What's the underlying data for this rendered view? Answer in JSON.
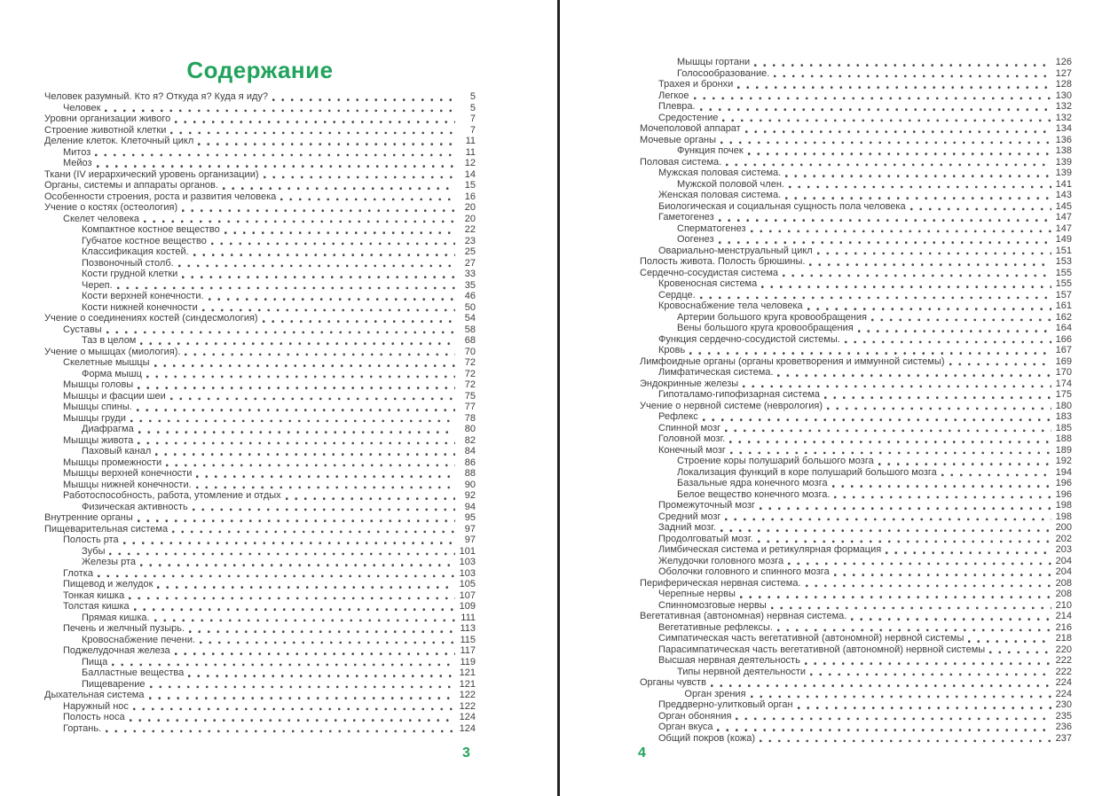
{
  "title": "Содержание",
  "accent_color": "#21a35c",
  "text_color": "#3d3d3d",
  "pages": [
    {
      "number": "3",
      "entries": [
        {
          "label": "Человек разумный. Кто я? Откуда я? Куда я иду?",
          "page": "5",
          "indent": 0
        },
        {
          "label": "Человек",
          "page": "5",
          "indent": 1
        },
        {
          "label": "Уровни организации живого",
          "page": "7",
          "indent": 0
        },
        {
          "label": "Строение животной клетки",
          "page": "7",
          "indent": 0
        },
        {
          "label": "Деление клеток. Клеточный цикл",
          "page": "11",
          "indent": 0
        },
        {
          "label": "Митоз",
          "page": "11",
          "indent": 1
        },
        {
          "label": "Мейоз",
          "page": "12",
          "indent": 1
        },
        {
          "label": "Ткани (IV иерархический уровень организации)",
          "page": "14",
          "indent": 0
        },
        {
          "label": "Органы, системы и аппараты органов.",
          "page": "15",
          "indent": 0
        },
        {
          "label": "Особенности строения, роста и развития человека",
          "page": "16",
          "indent": 0
        },
        {
          "label": "Учение о костях (остеология)",
          "page": "20",
          "indent": 0
        },
        {
          "label": "Скелет человека",
          "page": "20",
          "indent": 1
        },
        {
          "label": "Компактное костное вещество",
          "page": "22",
          "indent": 2
        },
        {
          "label": "Губчатое костное вещество",
          "page": "23",
          "indent": 2
        },
        {
          "label": "Классификация костей.",
          "page": "25",
          "indent": 2
        },
        {
          "label": "Позвоночный столб.",
          "page": "27",
          "indent": 2
        },
        {
          "label": "Кости грудной клетки",
          "page": "33",
          "indent": 2
        },
        {
          "label": "Череп.",
          "page": "35",
          "indent": 2
        },
        {
          "label": "Кости верхней конечности.",
          "page": "46",
          "indent": 2
        },
        {
          "label": "Кости нижней конечности",
          "page": "50",
          "indent": 2
        },
        {
          "label": "Учение о соединениях костей (синдесмология)",
          "page": "54",
          "indent": 0
        },
        {
          "label": "Суставы",
          "page": "58",
          "indent": 1
        },
        {
          "label": "Таз в целом",
          "page": "68",
          "indent": 2
        },
        {
          "label": "Учение о мышцах (миология).",
          "page": "70",
          "indent": 0
        },
        {
          "label": "Скелетные мышцы",
          "page": "72",
          "indent": 1
        },
        {
          "label": "Форма мышц",
          "page": "72",
          "indent": 2
        },
        {
          "label": "Мышцы головы",
          "page": "72",
          "indent": 1
        },
        {
          "label": "Мышцы и фасции шеи",
          "page": "75",
          "indent": 1
        },
        {
          "label": "Мышцы спины.",
          "page": "77",
          "indent": 1
        },
        {
          "label": "Мышцы груди",
          "page": "78",
          "indent": 1
        },
        {
          "label": "Диафрагма",
          "page": "80",
          "indent": 2
        },
        {
          "label": "Мышцы живота",
          "page": "82",
          "indent": 1
        },
        {
          "label": "Паховый канал",
          "page": "84",
          "indent": 2
        },
        {
          "label": "Мышцы промежности",
          "page": "86",
          "indent": 1
        },
        {
          "label": "Мышцы верхней конечности",
          "page": "88",
          "indent": 1
        },
        {
          "label": "Мышцы нижней конечности.",
          "page": "90",
          "indent": 1
        },
        {
          "label": "Работоспособность, работа, утомление и отдых",
          "page": "92",
          "indent": 1
        },
        {
          "label": "Физическая активность",
          "page": "94",
          "indent": 2
        },
        {
          "label": "Внутренние органы",
          "page": "95",
          "indent": 0
        },
        {
          "label": "Пищеварительная система",
          "page": "97",
          "indent": 0
        },
        {
          "label": "Полость рта",
          "page": "97",
          "indent": 1
        },
        {
          "label": "Зубы",
          "page": "101",
          "indent": 2
        },
        {
          "label": "Железы рта",
          "page": "103",
          "indent": 2
        },
        {
          "label": "Глотка",
          "page": "103",
          "indent": 1
        },
        {
          "label": "Пищевод и желудок",
          "page": "105",
          "indent": 1
        },
        {
          "label": "Тонкая кишка",
          "page": "107",
          "indent": 1
        },
        {
          "label": "Толстая кишка",
          "page": "109",
          "indent": 1
        },
        {
          "label": "Прямая кишка.",
          "page": "111",
          "indent": 2
        },
        {
          "label": "Печень и желчный пузырь.",
          "page": "113",
          "indent": 1
        },
        {
          "label": "Кровоснабжение печени.",
          "page": "115",
          "indent": 2
        },
        {
          "label": "Поджелудочная железа",
          "page": "117",
          "indent": 1
        },
        {
          "label": "Пища",
          "page": "119",
          "indent": 2
        },
        {
          "label": "Балластные вещества",
          "page": "121",
          "indent": 2
        },
        {
          "label": "Пищеварение",
          "page": "121",
          "indent": 2
        },
        {
          "label": "Дыхательная система",
          "page": "122",
          "indent": 0
        },
        {
          "label": "Наружный нос",
          "page": "122",
          "indent": 1
        },
        {
          "label": "Полость носа",
          "page": "124",
          "indent": 1
        },
        {
          "label": "Гортань.",
          "page": "124",
          "indent": 1
        }
      ]
    },
    {
      "number": "4",
      "entries": [
        {
          "label": "Мышцы гортани",
          "page": "126",
          "indent": 2
        },
        {
          "label": "Голосообразование.",
          "page": "127",
          "indent": 2
        },
        {
          "label": "Трахея и бронхи",
          "page": "128",
          "indent": 1
        },
        {
          "label": "Легкое",
          "page": "130",
          "indent": 1
        },
        {
          "label": "Плевра.",
          "page": "132",
          "indent": 1
        },
        {
          "label": "Средостение",
          "page": "132",
          "indent": 1
        },
        {
          "label": "Мочеполовой аппарат",
          "page": "134",
          "indent": 0
        },
        {
          "label": "Мочевые органы",
          "page": "136",
          "indent": 0
        },
        {
          "label": "Функция почек",
          "page": "138",
          "indent": 2
        },
        {
          "label": "Половая система.",
          "page": "139",
          "indent": 0
        },
        {
          "label": "Мужская половая система.",
          "page": "139",
          "indent": 1
        },
        {
          "label": "Мужской половой член.",
          "page": "141",
          "indent": 2
        },
        {
          "label": "Женская половая система.",
          "page": "143",
          "indent": 1
        },
        {
          "label": "Биологическая и социальная сущность пола человека",
          "page": "145",
          "indent": 1
        },
        {
          "label": "Гаметогенез",
          "page": "147",
          "indent": 1
        },
        {
          "label": "Сперматогенез",
          "page": "147",
          "indent": 2
        },
        {
          "label": "Оогенез",
          "page": "149",
          "indent": 2
        },
        {
          "label": "Овариально-менструальный цикл",
          "page": "151",
          "indent": 1
        },
        {
          "label": "Полость живота. Полость брюшины.",
          "page": "153",
          "indent": 0
        },
        {
          "label": "Сердечно-сосудистая система",
          "page": "155",
          "indent": 0
        },
        {
          "label": "Кровеносная система",
          "page": "155",
          "indent": 1
        },
        {
          "label": "Сердце.",
          "page": "157",
          "indent": 1
        },
        {
          "label": "Кровоснабжение тела человека",
          "page": "161",
          "indent": 1
        },
        {
          "label": "Артерии большого круга кровообращения",
          "page": "162",
          "indent": 2
        },
        {
          "label": "Вены большого круга кровообращения",
          "page": "164",
          "indent": 2
        },
        {
          "label": "Функция сердечно-сосудистой системы.",
          "page": "166",
          "indent": 1
        },
        {
          "label": "Кровь",
          "page": "167",
          "indent": 1
        },
        {
          "label": "Лимфоидные органы (органы кроветворения и иммунной системы)",
          "page": "169",
          "indent": 0
        },
        {
          "label": "Лимфатическая система.",
          "page": "170",
          "indent": 1
        },
        {
          "label": "Эндокринные железы",
          "page": "174",
          "indent": 0
        },
        {
          "label": "Гипоталамо-гипофизарная система",
          "page": "175",
          "indent": 1
        },
        {
          "label": "Учение о нервной системе (неврология)",
          "page": "180",
          "indent": 0
        },
        {
          "label": "Рефлекс",
          "page": "183",
          "indent": 1
        },
        {
          "label": "Спинной мозг",
          "page": "185",
          "indent": 1
        },
        {
          "label": "Головной мозг.",
          "page": "188",
          "indent": 1
        },
        {
          "label": "Конечный мозг",
          "page": "189",
          "indent": 1
        },
        {
          "label": "Строение коры полушарий большого мозга",
          "page": "192",
          "indent": 2
        },
        {
          "label": "Локализация функций в коре полушарий большого мозга",
          "page": "194",
          "indent": 2
        },
        {
          "label": "Базальные ядра конечного мозга",
          "page": "196",
          "indent": 2
        },
        {
          "label": "Белое вещество конечного мозга.",
          "page": "196",
          "indent": 2
        },
        {
          "label": "Промежуточный мозг",
          "page": "198",
          "indent": 1
        },
        {
          "label": "Средний мозг",
          "page": "198",
          "indent": 1
        },
        {
          "label": "Задний мозг.",
          "page": "200",
          "indent": 1
        },
        {
          "label": "Продолговатый мозг.",
          "page": "202",
          "indent": 1
        },
        {
          "label": "Лимбическая система и ретикулярная формация",
          "page": "203",
          "indent": 1
        },
        {
          "label": "Желудочки головного мозга",
          "page": "204",
          "indent": 1
        },
        {
          "label": "Оболочки головного и спинного мозга",
          "page": "204",
          "indent": 1
        },
        {
          "label": "Периферическая нервная система.",
          "page": "208",
          "indent": 0
        },
        {
          "label": "Черепные нервы",
          "page": "208",
          "indent": 1
        },
        {
          "label": "Спинномозговые нервы",
          "page": "210",
          "indent": 1
        },
        {
          "label": "Вегетативная (автономная) нервная система.",
          "page": "214",
          "indent": 0
        },
        {
          "label": "Вегетативные рефлексы.",
          "page": "216",
          "indent": 1
        },
        {
          "label": "Симпатическая часть вегетативной (автономной) нервной системы",
          "page": "218",
          "indent": 1
        },
        {
          "label": "Парасимпатическая часть вегетативной (автономной) нервной системы",
          "page": "220",
          "indent": 1
        },
        {
          "label": "Высшая нервная деятельность",
          "page": "222",
          "indent": 1
        },
        {
          "label": "Типы нервной деятельности",
          "page": "222",
          "indent": 2
        },
        {
          "label": "Органы чувств",
          "page": "224",
          "indent": 0
        },
        {
          "label": "Орган зрения",
          "page": "224",
          "indent": 2.4
        },
        {
          "label": "Преддверно-улитковый орган",
          "page": "230",
          "indent": 1
        },
        {
          "label": "Орган обоняния",
          "page": "235",
          "indent": 1
        },
        {
          "label": "Орган вкуса",
          "page": "236",
          "indent": 1
        },
        {
          "label": "Общий покров (кожа)",
          "page": "237",
          "indent": 1
        }
      ]
    }
  ]
}
